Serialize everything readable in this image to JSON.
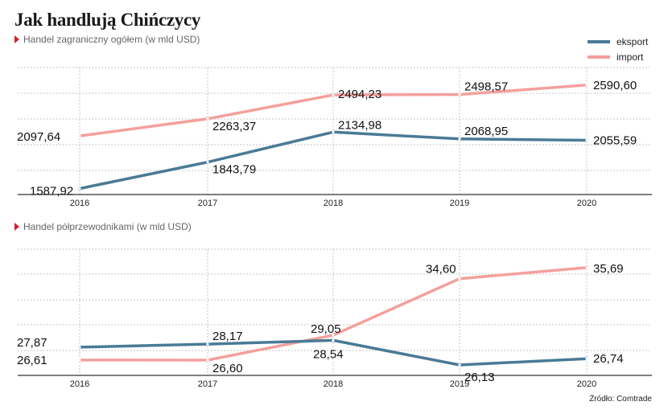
{
  "title": "Jak handlują Chińczycy",
  "source": "Źródło: Comtrade",
  "legend": [
    {
      "name": "eksport",
      "color": "#4a7a96"
    },
    {
      "name": "import",
      "color": "#f4a09c"
    }
  ],
  "chart_data": [
    {
      "type": "line",
      "title": "Handel zagraniczny ogółem (w mld USD)",
      "x": [
        "2016",
        "2017",
        "2018",
        "2019",
        "2020"
      ],
      "series": [
        {
          "name": "eksport",
          "color": "#4a7a96",
          "values": [
            1587.92,
            1843.79,
            2134.98,
            2068.95,
            2055.59
          ],
          "labels": [
            "1587,92",
            "1843,79",
            "2134,98",
            "2068,95",
            "2055,59"
          ]
        },
        {
          "name": "import",
          "color": "#f4a09c",
          "values": [
            2097.64,
            2263.37,
            2494.23,
            2498.57,
            2590.6
          ],
          "labels": [
            "2097,64",
            "2263,37",
            "2494,23",
            "2498,57",
            "2590,60"
          ]
        }
      ],
      "ylim": [
        1530,
        2760
      ],
      "grid": true,
      "legend": "top-right"
    },
    {
      "type": "line",
      "title": "Handel półprzewodnikami (w mld USD)",
      "x": [
        "2016",
        "2017",
        "2018",
        "2019",
        "2020"
      ],
      "series": [
        {
          "name": "eksport",
          "color": "#4a7a96",
          "values": [
            27.87,
            28.17,
            28.54,
            26.13,
            26.74
          ],
          "labels": [
            "27,87",
            "28,17",
            "28,54",
            "26,13",
            "26,74"
          ]
        },
        {
          "name": "import",
          "color": "#f4a09c",
          "values": [
            26.61,
            26.6,
            29.05,
            34.6,
            35.69
          ],
          "labels": [
            "26,61",
            "26,60",
            "29,05",
            "34,60",
            "35,69"
          ]
        }
      ],
      "ylim": [
        25.1,
        37.5
      ],
      "grid": true
    }
  ]
}
